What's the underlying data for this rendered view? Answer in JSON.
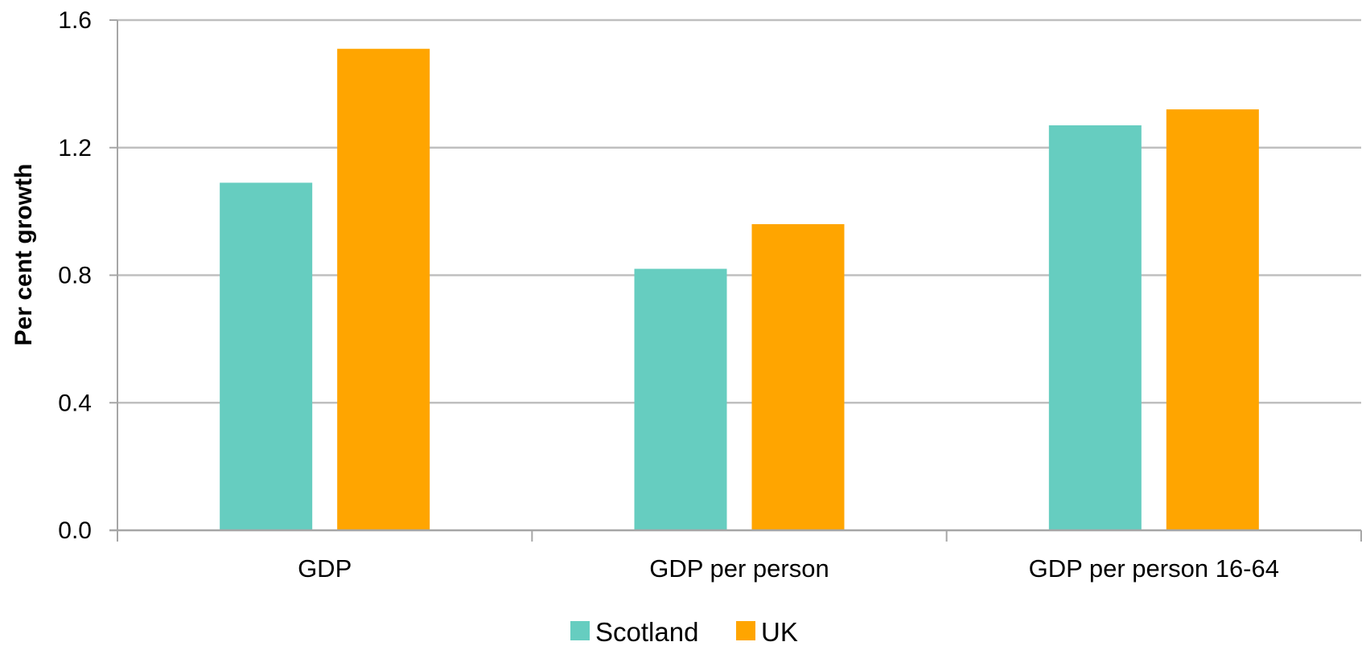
{
  "chart_data": {
    "type": "bar",
    "title": "",
    "xlabel": "",
    "ylabel": "Per cent growth",
    "categories": [
      "GDP",
      "GDP per person",
      "GDP per person 16-64"
    ],
    "series": [
      {
        "name": "Scotland",
        "color": "#66cdc0",
        "values": [
          1.09,
          0.82,
          1.27
        ]
      },
      {
        "name": "UK",
        "color": "#ffa500",
        "values": [
          1.51,
          0.96,
          1.32
        ]
      }
    ],
    "ylim": [
      0,
      1.6
    ],
    "yticks": [
      "0.0",
      "0.4",
      "0.8",
      "1.2",
      "1.6"
    ],
    "grid": true,
    "legend_position": "bottom-center"
  }
}
